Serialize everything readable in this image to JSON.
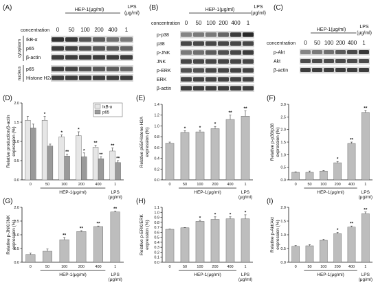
{
  "blots": {
    "A": {
      "label": "(A)",
      "header": "HEP-1(μg/ml)",
      "lps": [
        "LPS",
        "(μg/ml)"
      ],
      "conc_label": "concentration",
      "conc": [
        "0",
        "50",
        "100",
        "200",
        "400",
        "1"
      ],
      "group_cytoplasm": "cytoplasm",
      "group_nucleus": "nucleus",
      "rows": [
        "IkB-α",
        "p65",
        "β-actin",
        "p65",
        "Histone H2A"
      ]
    },
    "B": {
      "label": "(B)",
      "header": "HEP-1(μg/ml)",
      "lps": [
        "LPS",
        "(μg/ml)"
      ],
      "conc_label": "concentration",
      "conc": [
        "0",
        "50",
        "100",
        "200",
        "400",
        "1"
      ],
      "rows": [
        "p-p38",
        "p38",
        "p-JNK",
        "JNK",
        "p-ERK",
        "ERK",
        "β-actin"
      ]
    },
    "C": {
      "label": "(C)",
      "header": "HEP-1(μg/ml)",
      "lps": [
        "LPS",
        "(μg/ml)"
      ],
      "conc_label": "concentration",
      "conc": [
        "0",
        "50",
        "100",
        "200",
        "400",
        "1"
      ],
      "rows": [
        "p-Akt",
        "Akt",
        "β-actin"
      ]
    }
  },
  "charts": {
    "D": {
      "label": "(D)",
      "chart_data": {
        "type": "bar",
        "categories": [
          "0",
          "50",
          "100",
          "200",
          "400",
          "1"
        ],
        "xlabel_hep": "HEP-1(μg/ml)",
        "xlabel_lps": [
          "LPS",
          "(μg/ml)"
        ],
        "ylabel": [
          "Relative production/β-actin",
          "expression (%)"
        ],
        "ylim": [
          0,
          2.0
        ],
        "yticks": [
          "0.0",
          "0.5",
          "1.0",
          "1.5",
          "2.0"
        ],
        "legend": [
          "IκB-α",
          "p65"
        ],
        "series": [
          {
            "name": "IκB-α",
            "color": "#e6e6e6",
            "values": [
              1.55,
              1.55,
              1.12,
              1.15,
              0.85,
              0.75
            ],
            "err": [
              0.1,
              0.1,
              0.05,
              0.1,
              0.05,
              0.08
            ],
            "sig": [
              "",
              "*",
              "*",
              "*",
              "**",
              "**"
            ]
          },
          {
            "name": "p65",
            "color": "#9a9a9a",
            "values": [
              1.35,
              0.88,
              0.62,
              0.6,
              0.55,
              0.45
            ],
            "err": [
              0.1,
              0.05,
              0.05,
              0.1,
              0.05,
              0.05
            ],
            "sig": [
              "",
              "",
              "**",
              "*",
              "**",
              "**"
            ]
          }
        ]
      }
    },
    "E": {
      "label": "(E)",
      "chart_data": {
        "type": "bar",
        "categories": [
          "0",
          "50",
          "100",
          "200",
          "400",
          "1"
        ],
        "xlabel_hep": "HEP-1(μg/ml)",
        "xlabel_lps": [
          "LPS",
          "(μg/ml)"
        ],
        "ylabel": [
          "Relative p65/Histone H2A",
          "expression (%)"
        ],
        "ylim": [
          0,
          1.4
        ],
        "yticks": [
          "0.0",
          "0.2",
          "0.4",
          "0.6",
          "0.8",
          "1.0",
          "1.2",
          "1.4"
        ],
        "series": [
          {
            "name": "",
            "color": "#bdbdbd",
            "values": [
              0.68,
              0.88,
              0.89,
              0.95,
              1.12,
              1.18
            ],
            "err": [
              0.02,
              0.03,
              0.03,
              0.04,
              0.08,
              0.1
            ],
            "sig": [
              "",
              "*",
              "*",
              "*",
              "**",
              "**"
            ]
          }
        ]
      }
    },
    "F": {
      "label": "(F)",
      "chart_data": {
        "type": "bar",
        "categories": [
          "0",
          "50",
          "100",
          "200",
          "400",
          "1"
        ],
        "xlabel_hep": "HEP-1(μg/ml)",
        "xlabel_lps": [
          "LPS",
          "(μg/ml)"
        ],
        "ylabel": [
          "Relative p-p38/p38",
          "expression (%)"
        ],
        "ylim": [
          0,
          3.0
        ],
        "yticks": [
          "0.0",
          "0.5",
          "1.0",
          "1.5",
          "2.0",
          "2.5",
          "3.0"
        ],
        "series": [
          {
            "name": "",
            "color": "#bdbdbd",
            "values": [
              0.3,
              0.3,
              0.35,
              0.68,
              1.45,
              2.68
            ],
            "err": [
              0.02,
              0.05,
              0.02,
              0.05,
              0.05,
              0.08
            ],
            "sig": [
              "",
              "",
              "",
              "*",
              "**",
              "**"
            ]
          }
        ]
      }
    },
    "G": {
      "label": "(G)",
      "chart_data": {
        "type": "bar",
        "categories": [
          "0",
          "50",
          "100",
          "200",
          "400",
          "1"
        ],
        "xlabel_hep": "HEP-1(μg/ml)",
        "xlabel_lps": [
          "LPS",
          "(μg/ml)"
        ],
        "ylabel": [
          "Relative p-JNK/JNK",
          "expression (%)"
        ],
        "ylim": [
          0,
          2.0
        ],
        "yticks": [
          "0.0",
          "0.5",
          "1.0",
          "1.5",
          "2.0"
        ],
        "series": [
          {
            "name": "",
            "color": "#bdbdbd",
            "values": [
              0.28,
              0.4,
              0.82,
              1.12,
              1.3,
              1.83
            ],
            "err": [
              0.05,
              0.08,
              0.08,
              0.03,
              0.02,
              0.03
            ],
            "sig": [
              "",
              "",
              "**",
              "**",
              "**",
              "**"
            ]
          }
        ]
      }
    },
    "H": {
      "label": "(H)",
      "chart_data": {
        "type": "bar",
        "categories": [
          "0",
          "50",
          "100",
          "200",
          "400",
          "1"
        ],
        "xlabel_hep": "HEP-1(μg/ml)",
        "xlabel_lps": [
          "LPS",
          "(μg/ml)"
        ],
        "ylabel": [
          "Relative p-ERK/ERK",
          "expression (%)"
        ],
        "ylim": [
          0,
          1.1
        ],
        "yticks": [
          "0.0",
          "0.1",
          "0.2",
          "0.3",
          "0.4",
          "0.5",
          "0.6",
          "0.7",
          "0.8",
          "0.9",
          "1.0",
          "1.1"
        ],
        "series": [
          {
            "name": "",
            "color": "#bdbdbd",
            "values": [
              0.66,
              0.69,
              0.82,
              0.86,
              0.87,
              0.87
            ],
            "err": [
              0.005,
              0.005,
              0.02,
              0.05,
              0.04,
              0.08
            ],
            "sig": [
              "",
              "",
              "*",
              "*",
              "*",
              "*"
            ]
          }
        ]
      }
    },
    "I": {
      "label": "(I)",
      "chart_data": {
        "type": "bar",
        "categories": [
          "0",
          "50",
          "100",
          "200",
          "400",
          "1"
        ],
        "xlabel_hep": "HEP-1(μg/ml)",
        "xlabel_lps": [
          "LPS",
          "(μg/ml)"
        ],
        "ylabel": [
          "Relative p-Akt/Akt",
          "expression (%)"
        ],
        "ylim": [
          0,
          2.0
        ],
        "yticks": [
          "0.0",
          "0.5",
          "1.0",
          "1.5",
          "2.0"
        ],
        "series": [
          {
            "name": "",
            "color": "#bdbdbd",
            "values": [
              0.58,
              0.6,
              0.8,
              1.04,
              1.28,
              1.77
            ],
            "err": [
              0.03,
              0.04,
              0.04,
              0.05,
              0.04,
              0.06
            ],
            "sig": [
              "",
              "",
              "",
              "*",
              "**",
              "**"
            ]
          }
        ]
      }
    }
  }
}
